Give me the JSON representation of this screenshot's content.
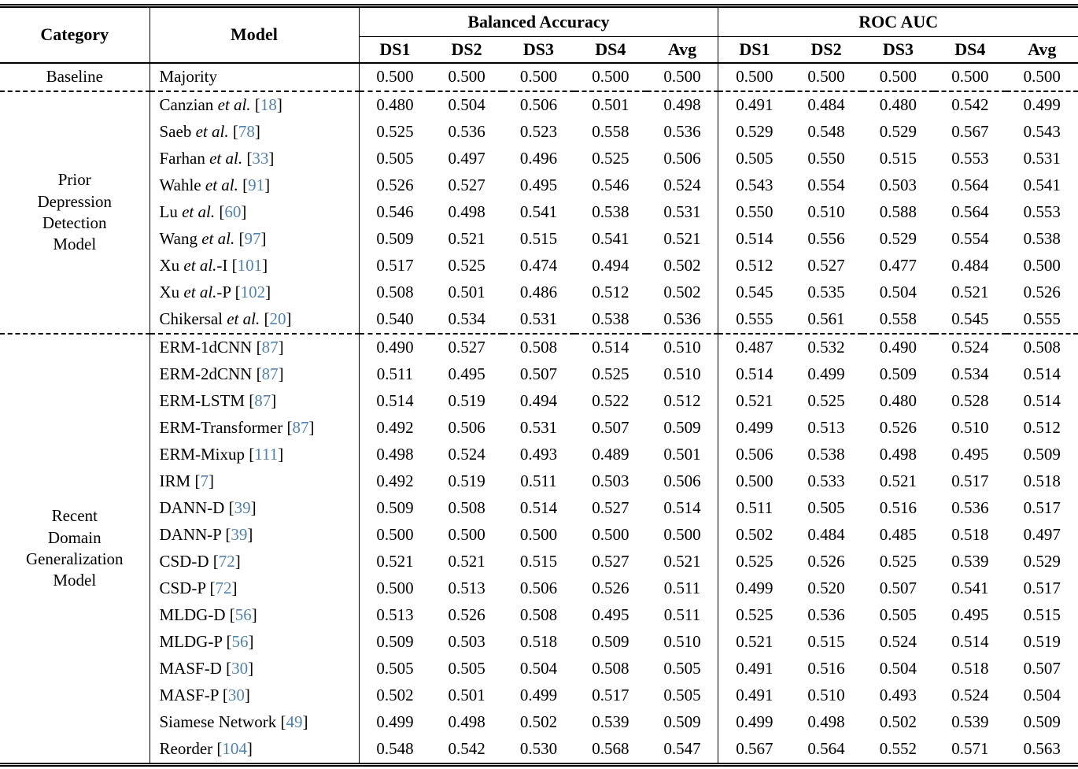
{
  "table": {
    "citation_color": "#4d82b8",
    "header": {
      "category": "Category",
      "model": "Model"
    },
    "col_groups": [
      {
        "label": "Balanced Accuracy",
        "subcols": [
          "DS1",
          "DS2",
          "DS3",
          "DS4",
          "Avg"
        ]
      },
      {
        "label": "ROC AUC",
        "subcols": [
          "DS1",
          "DS2",
          "DS3",
          "DS4",
          "Avg"
        ]
      }
    ],
    "groups": [
      {
        "category_lines": [
          "Baseline"
        ],
        "rows": [
          {
            "pre": "Majority",
            "it": "",
            "post": "",
            "cite": null,
            "ba": [
              "0.500",
              "0.500",
              "0.500",
              "0.500",
              "0.500"
            ],
            "roc": [
              "0.500",
              "0.500",
              "0.500",
              "0.500",
              "0.500"
            ]
          }
        ]
      },
      {
        "category_lines": [
          "Prior",
          "Depression",
          "Detection",
          "Model"
        ],
        "rows": [
          {
            "pre": "Canzian",
            "it": "et al.",
            "post": "",
            "cite": "18",
            "ba": [
              "0.480",
              "0.504",
              "0.506",
              "0.501",
              "0.498"
            ],
            "roc": [
              "0.491",
              "0.484",
              "0.480",
              "0.542",
              "0.499"
            ]
          },
          {
            "pre": "Saeb",
            "it": "et al.",
            "post": "",
            "cite": "78",
            "ba": [
              "0.525",
              "0.536",
              "0.523",
              "0.558",
              "0.536"
            ],
            "roc": [
              "0.529",
              "0.548",
              "0.529",
              "0.567",
              "0.543"
            ]
          },
          {
            "pre": "Farhan",
            "it": "et al.",
            "post": "",
            "cite": "33",
            "ba": [
              "0.505",
              "0.497",
              "0.496",
              "0.525",
              "0.506"
            ],
            "roc": [
              "0.505",
              "0.550",
              "0.515",
              "0.553",
              "0.531"
            ]
          },
          {
            "pre": "Wahle",
            "it": "et al.",
            "post": "",
            "cite": "91",
            "ba": [
              "0.526",
              "0.527",
              "0.495",
              "0.546",
              "0.524"
            ],
            "roc": [
              "0.543",
              "0.554",
              "0.503",
              "0.564",
              "0.541"
            ]
          },
          {
            "pre": "Lu",
            "it": "et al.",
            "post": "",
            "cite": "60",
            "ba": [
              "0.546",
              "0.498",
              "0.541",
              "0.538",
              "0.531"
            ],
            "roc": [
              "0.550",
              "0.510",
              "0.588",
              "0.564",
              "0.553"
            ]
          },
          {
            "pre": "Wang",
            "it": "et al.",
            "post": "",
            "cite": "97",
            "ba": [
              "0.509",
              "0.521",
              "0.515",
              "0.541",
              "0.521"
            ],
            "roc": [
              "0.514",
              "0.556",
              "0.529",
              "0.554",
              "0.538"
            ]
          },
          {
            "pre": "Xu",
            "it": "et al.",
            "post": "-I",
            "cite": "101",
            "ba": [
              "0.517",
              "0.525",
              "0.474",
              "0.494",
              "0.502"
            ],
            "roc": [
              "0.512",
              "0.527",
              "0.477",
              "0.484",
              "0.500"
            ]
          },
          {
            "pre": "Xu",
            "it": "et al.",
            "post": "-P",
            "cite": "102",
            "ba": [
              "0.508",
              "0.501",
              "0.486",
              "0.512",
              "0.502"
            ],
            "roc": [
              "0.545",
              "0.535",
              "0.504",
              "0.521",
              "0.526"
            ]
          },
          {
            "pre": "Chikersal",
            "it": "et al.",
            "post": "",
            "cite": "20",
            "ba": [
              "0.540",
              "0.534",
              "0.531",
              "0.538",
              "0.536"
            ],
            "roc": [
              "0.555",
              "0.561",
              "0.558",
              "0.545",
              "0.555"
            ]
          }
        ]
      },
      {
        "category_lines": [
          "Recent",
          "Domain",
          "Generalization",
          "Model"
        ],
        "rows": [
          {
            "pre": "ERM-1dCNN",
            "it": "",
            "post": "",
            "cite": "87",
            "ba": [
              "0.490",
              "0.527",
              "0.508",
              "0.514",
              "0.510"
            ],
            "roc": [
              "0.487",
              "0.532",
              "0.490",
              "0.524",
              "0.508"
            ]
          },
          {
            "pre": "ERM-2dCNN",
            "it": "",
            "post": "",
            "cite": "87",
            "ba": [
              "0.511",
              "0.495",
              "0.507",
              "0.525",
              "0.510"
            ],
            "roc": [
              "0.514",
              "0.499",
              "0.509",
              "0.534",
              "0.514"
            ]
          },
          {
            "pre": "ERM-LSTM",
            "it": "",
            "post": "",
            "cite": "87",
            "ba": [
              "0.514",
              "0.519",
              "0.494",
              "0.522",
              "0.512"
            ],
            "roc": [
              "0.521",
              "0.525",
              "0.480",
              "0.528",
              "0.514"
            ]
          },
          {
            "pre": "ERM-Transformer",
            "it": "",
            "post": "",
            "cite": "87",
            "ba": [
              "0.492",
              "0.506",
              "0.531",
              "0.507",
              "0.509"
            ],
            "roc": [
              "0.499",
              "0.513",
              "0.526",
              "0.510",
              "0.512"
            ]
          },
          {
            "pre": "ERM-Mixup",
            "it": "",
            "post": "",
            "cite": "111",
            "ba": [
              "0.498",
              "0.524",
              "0.493",
              "0.489",
              "0.501"
            ],
            "roc": [
              "0.506",
              "0.538",
              "0.498",
              "0.495",
              "0.509"
            ]
          },
          {
            "pre": "IRM",
            "it": "",
            "post": "",
            "cite": "7",
            "ba": [
              "0.492",
              "0.519",
              "0.511",
              "0.503",
              "0.506"
            ],
            "roc": [
              "0.500",
              "0.533",
              "0.521",
              "0.517",
              "0.518"
            ]
          },
          {
            "pre": "DANN-D",
            "it": "",
            "post": "",
            "cite": "39",
            "ba": [
              "0.509",
              "0.508",
              "0.514",
              "0.527",
              "0.514"
            ],
            "roc": [
              "0.511",
              "0.505",
              "0.516",
              "0.536",
              "0.517"
            ]
          },
          {
            "pre": "DANN-P",
            "it": "",
            "post": "",
            "cite": "39",
            "ba": [
              "0.500",
              "0.500",
              "0.500",
              "0.500",
              "0.500"
            ],
            "roc": [
              "0.502",
              "0.484",
              "0.485",
              "0.518",
              "0.497"
            ]
          },
          {
            "pre": "CSD-D",
            "it": "",
            "post": "",
            "cite": "72",
            "ba": [
              "0.521",
              "0.521",
              "0.515",
              "0.527",
              "0.521"
            ],
            "roc": [
              "0.525",
              "0.526",
              "0.525",
              "0.539",
              "0.529"
            ]
          },
          {
            "pre": "CSD-P",
            "it": "",
            "post": "",
            "cite": "72",
            "ba": [
              "0.500",
              "0.513",
              "0.506",
              "0.526",
              "0.511"
            ],
            "roc": [
              "0.499",
              "0.520",
              "0.507",
              "0.541",
              "0.517"
            ]
          },
          {
            "pre": "MLDG-D",
            "it": "",
            "post": "",
            "cite": "56",
            "ba": [
              "0.513",
              "0.526",
              "0.508",
              "0.495",
              "0.511"
            ],
            "roc": [
              "0.525",
              "0.536",
              "0.505",
              "0.495",
              "0.515"
            ]
          },
          {
            "pre": "MLDG-P",
            "it": "",
            "post": "",
            "cite": "56",
            "ba": [
              "0.509",
              "0.503",
              "0.518",
              "0.509",
              "0.510"
            ],
            "roc": [
              "0.521",
              "0.515",
              "0.524",
              "0.514",
              "0.519"
            ]
          },
          {
            "pre": "MASF-D",
            "it": "",
            "post": "",
            "cite": "30",
            "ba": [
              "0.505",
              "0.505",
              "0.504",
              "0.508",
              "0.505"
            ],
            "roc": [
              "0.491",
              "0.516",
              "0.504",
              "0.518",
              "0.507"
            ]
          },
          {
            "pre": "MASF-P",
            "it": "",
            "post": "",
            "cite": "30",
            "ba": [
              "0.502",
              "0.501",
              "0.499",
              "0.517",
              "0.505"
            ],
            "roc": [
              "0.491",
              "0.510",
              "0.493",
              "0.524",
              "0.504"
            ]
          },
          {
            "pre": "Siamese Network",
            "it": "",
            "post": "",
            "cite": "49",
            "ba": [
              "0.499",
              "0.498",
              "0.502",
              "0.539",
              "0.509"
            ],
            "roc": [
              "0.499",
              "0.498",
              "0.502",
              "0.539",
              "0.509"
            ]
          },
          {
            "pre": "Reorder",
            "it": "",
            "post": "",
            "cite": "104",
            "ba": [
              "0.548",
              "0.542",
              "0.530",
              "0.568",
              "0.547"
            ],
            "roc": [
              "0.567",
              "0.564",
              "0.552",
              "0.571",
              "0.563"
            ]
          }
        ]
      }
    ]
  }
}
